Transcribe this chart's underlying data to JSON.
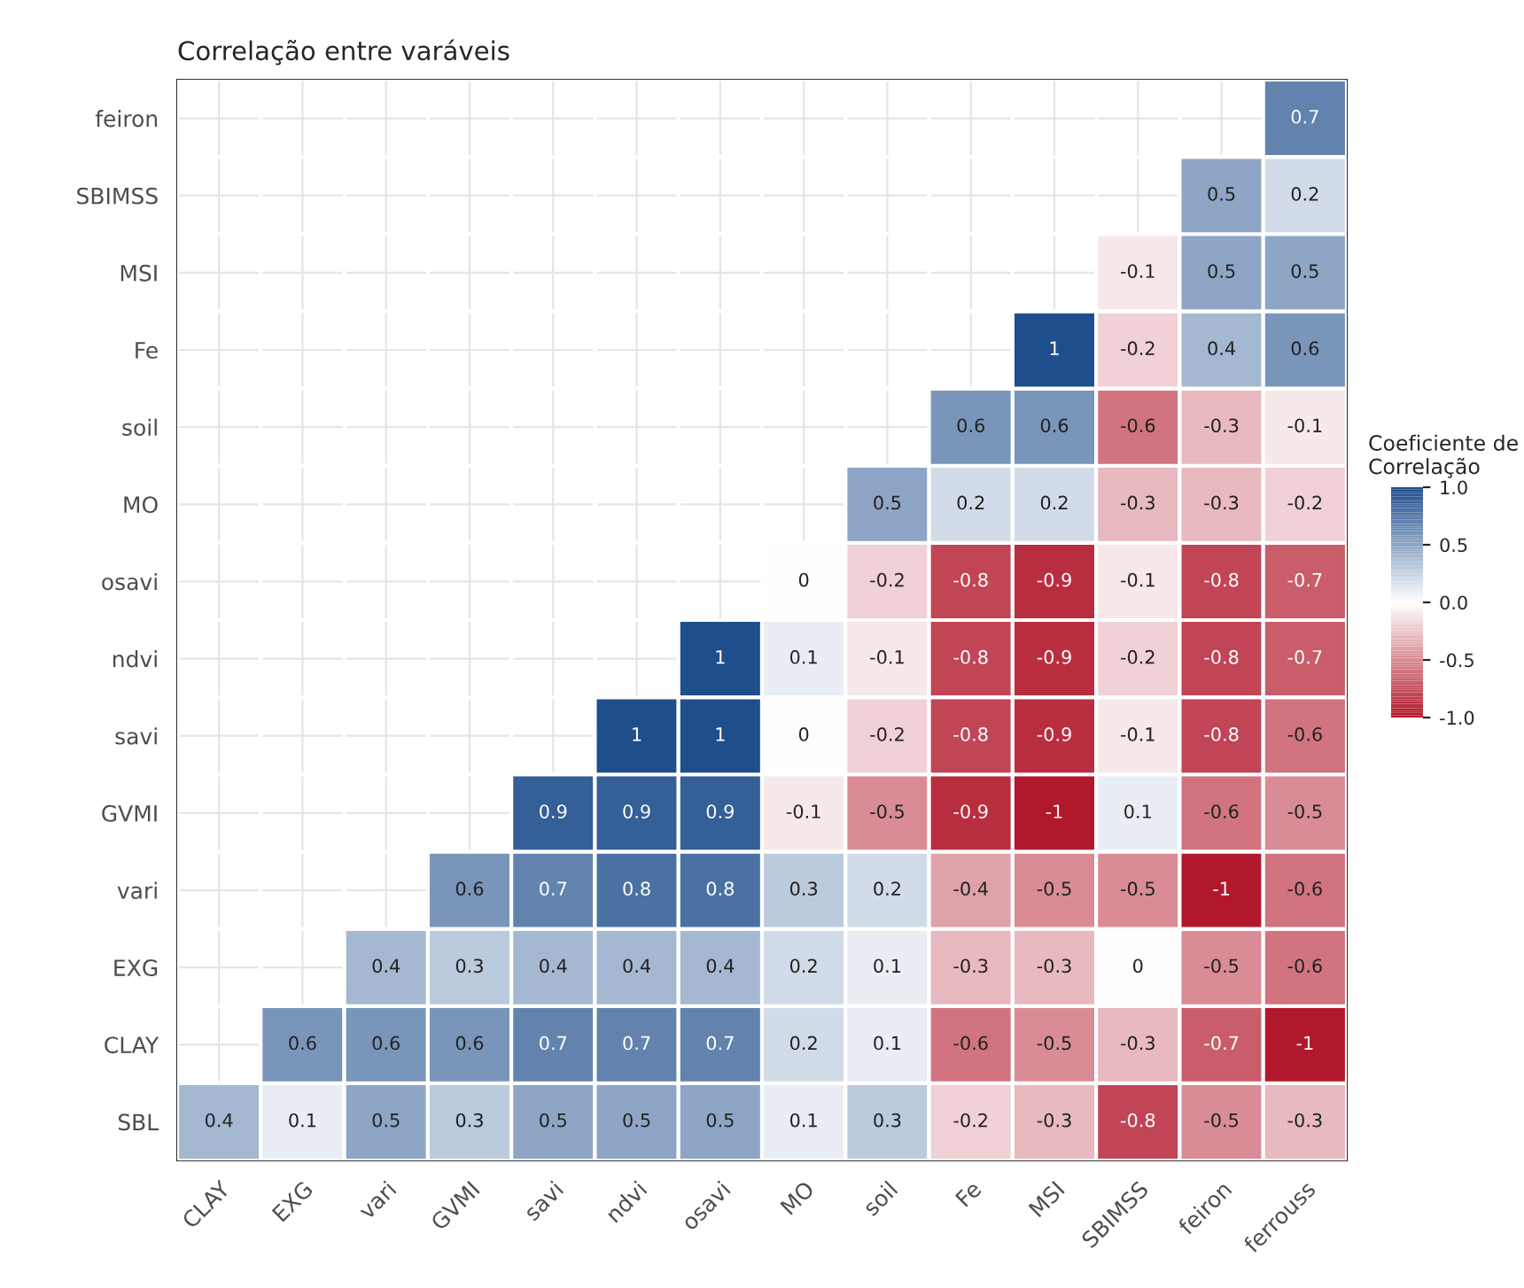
{
  "chart_data": {
    "type": "heatmap",
    "title": "Correlação entre varáveis",
    "clabel": "Coeficiente de\nCorrelação",
    "categories": [
      "CLAY",
      "EXG",
      "vari",
      "GVMI",
      "savi",
      "ndvi",
      "osavi",
      "MO",
      "soil",
      "Fe",
      "MSI",
      "SBIMSS",
      "feiron",
      "ferrouss"
    ],
    "y_categories": [
      "feiron",
      "SBIMSS",
      "MSI",
      "Fe",
      "soil",
      "MO",
      "osavi",
      "ndvi",
      "savi",
      "GVMI",
      "vari",
      "EXG",
      "CLAY",
      "SBL"
    ],
    "cells": [
      [
        null,
        null,
        null,
        null,
        null,
        null,
        null,
        null,
        null,
        null,
        null,
        null,
        null,
        0.7
      ],
      [
        null,
        null,
        null,
        null,
        null,
        null,
        null,
        null,
        null,
        null,
        null,
        null,
        0.5,
        0.2
      ],
      [
        null,
        null,
        null,
        null,
        null,
        null,
        null,
        null,
        null,
        null,
        null,
        -0.1,
        0.5,
        0.5
      ],
      [
        null,
        null,
        null,
        null,
        null,
        null,
        null,
        null,
        null,
        null,
        1,
        -0.2,
        0.4,
        0.6
      ],
      [
        null,
        null,
        null,
        null,
        null,
        null,
        null,
        null,
        null,
        0.6,
        0.6,
        -0.6,
        -0.3,
        -0.1
      ],
      [
        null,
        null,
        null,
        null,
        null,
        null,
        null,
        null,
        0.5,
        0.2,
        0.2,
        -0.3,
        -0.3,
        -0.2
      ],
      [
        null,
        null,
        null,
        null,
        null,
        null,
        null,
        0,
        -0.2,
        -0.8,
        -0.9,
        -0.1,
        -0.8,
        -0.7
      ],
      [
        null,
        null,
        null,
        null,
        null,
        null,
        1,
        0.1,
        -0.1,
        -0.8,
        -0.9,
        -0.2,
        -0.8,
        -0.7
      ],
      [
        null,
        null,
        null,
        null,
        null,
        1,
        1,
        0,
        -0.2,
        -0.8,
        -0.9,
        -0.1,
        -0.8,
        -0.6
      ],
      [
        null,
        null,
        null,
        null,
        0.9,
        0.9,
        0.9,
        -0.1,
        -0.5,
        -0.9,
        -1,
        0.1,
        -0.6,
        -0.5
      ],
      [
        null,
        null,
        null,
        0.6,
        0.7,
        0.8,
        0.8,
        0.3,
        0.2,
        -0.4,
        -0.5,
        -0.5,
        -1,
        -0.6
      ],
      [
        null,
        null,
        0.4,
        0.3,
        0.4,
        0.4,
        0.4,
        0.2,
        0.1,
        -0.3,
        -0.3,
        0,
        -0.5,
        -0.6
      ],
      [
        null,
        0.6,
        0.6,
        0.6,
        0.7,
        0.7,
        0.7,
        0.2,
        0.1,
        -0.6,
        -0.5,
        -0.3,
        -0.7,
        -1
      ],
      [
        0.4,
        0.1,
        0.5,
        0.3,
        0.5,
        0.5,
        0.5,
        0.1,
        0.3,
        -0.2,
        -0.3,
        -0.8,
        -0.5,
        -0.3
      ]
    ],
    "data_labels": true,
    "grid": true,
    "clim": [
      -1,
      1
    ],
    "cticks": [
      {
        "value": 1,
        "label": "1.0"
      },
      {
        "value": 0.5,
        "label": "0.5"
      },
      {
        "value": 0,
        "label": "0.0"
      },
      {
        "value": -0.5,
        "label": "-0.5"
      },
      {
        "value": -1,
        "label": "-1.0"
      }
    ]
  }
}
